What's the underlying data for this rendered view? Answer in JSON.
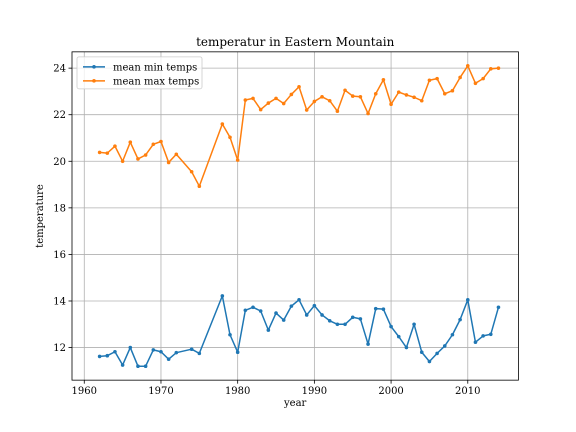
{
  "chart_data": {
    "type": "line",
    "title": "temperatur in Eastern Mountain",
    "xlabel": "year",
    "ylabel": "temperature",
    "xlim": [
      1958.4,
      2016.6
    ],
    "ylim": [
      10.6,
      24.7
    ],
    "x_ticks": [
      1960,
      1970,
      1980,
      1990,
      2000,
      2010
    ],
    "y_ticks": [
      12,
      14,
      16,
      18,
      20,
      22,
      24
    ],
    "grid": true,
    "legend_position": "top-left",
    "series": [
      {
        "name": "mean min temps",
        "color": "#1f77b4",
        "points": [
          [
            1962,
            11.62
          ],
          [
            1963,
            11.65
          ],
          [
            1964,
            11.82
          ],
          [
            1965,
            11.25
          ],
          [
            1966,
            12.0
          ],
          [
            1967,
            11.2
          ],
          [
            1968,
            11.2
          ],
          [
            1969,
            11.9
          ],
          [
            1970,
            11.82
          ],
          [
            1971,
            11.5
          ],
          [
            1972,
            11.78
          ],
          [
            1974,
            11.93
          ],
          [
            1975,
            11.75
          ],
          [
            1978,
            14.22
          ],
          [
            1979,
            12.55
          ],
          [
            1980,
            11.8
          ],
          [
            1981,
            13.6
          ],
          [
            1982,
            13.73
          ],
          [
            1983,
            13.57
          ],
          [
            1984,
            12.75
          ],
          [
            1985,
            13.48
          ],
          [
            1986,
            13.18
          ],
          [
            1987,
            13.78
          ],
          [
            1988,
            14.05
          ],
          [
            1989,
            13.4
          ],
          [
            1990,
            13.8
          ],
          [
            1991,
            13.4
          ],
          [
            1992,
            13.15
          ],
          [
            1993,
            13.0
          ],
          [
            1994,
            13.0
          ],
          [
            1995,
            13.3
          ],
          [
            1996,
            13.23
          ],
          [
            1997,
            12.15
          ],
          [
            1998,
            13.67
          ],
          [
            1999,
            13.65
          ],
          [
            2000,
            12.9
          ],
          [
            2001,
            12.47
          ],
          [
            2002,
            12.0
          ],
          [
            2003,
            13.0
          ],
          [
            2004,
            11.8
          ],
          [
            2005,
            11.4
          ],
          [
            2006,
            11.75
          ],
          [
            2007,
            12.07
          ],
          [
            2008,
            12.55
          ],
          [
            2009,
            13.2
          ],
          [
            2010,
            14.05
          ],
          [
            2011,
            12.23
          ],
          [
            2012,
            12.5
          ],
          [
            2013,
            12.57
          ],
          [
            2014,
            13.73
          ]
        ]
      },
      {
        "name": "mean max temps",
        "color": "#ff7f0e",
        "points": [
          [
            1962,
            20.38
          ],
          [
            1963,
            20.35
          ],
          [
            1964,
            20.65
          ],
          [
            1965,
            20.0
          ],
          [
            1966,
            20.82
          ],
          [
            1967,
            20.1
          ],
          [
            1968,
            20.27
          ],
          [
            1969,
            20.73
          ],
          [
            1970,
            20.85
          ],
          [
            1971,
            19.95
          ],
          [
            1972,
            20.3
          ],
          [
            1974,
            19.55
          ],
          [
            1975,
            18.93
          ],
          [
            1978,
            21.6
          ],
          [
            1979,
            21.03
          ],
          [
            1980,
            20.05
          ],
          [
            1981,
            22.63
          ],
          [
            1982,
            22.7
          ],
          [
            1983,
            22.22
          ],
          [
            1984,
            22.5
          ],
          [
            1985,
            22.7
          ],
          [
            1986,
            22.48
          ],
          [
            1987,
            22.87
          ],
          [
            1988,
            23.2
          ],
          [
            1989,
            22.2
          ],
          [
            1990,
            22.57
          ],
          [
            1991,
            22.77
          ],
          [
            1992,
            22.6
          ],
          [
            1993,
            22.15
          ],
          [
            1994,
            23.05
          ],
          [
            1995,
            22.8
          ],
          [
            1996,
            22.77
          ],
          [
            1997,
            22.05
          ],
          [
            1998,
            22.9
          ],
          [
            1999,
            23.5
          ],
          [
            2000,
            22.45
          ],
          [
            2001,
            22.97
          ],
          [
            2002,
            22.85
          ],
          [
            2003,
            22.75
          ],
          [
            2004,
            22.6
          ],
          [
            2005,
            23.48
          ],
          [
            2006,
            23.55
          ],
          [
            2007,
            22.9
          ],
          [
            2008,
            23.03
          ],
          [
            2009,
            23.6
          ],
          [
            2010,
            24.1
          ],
          [
            2011,
            23.35
          ],
          [
            2012,
            23.55
          ],
          [
            2013,
            23.97
          ],
          [
            2014,
            24.0
          ]
        ]
      }
    ]
  }
}
